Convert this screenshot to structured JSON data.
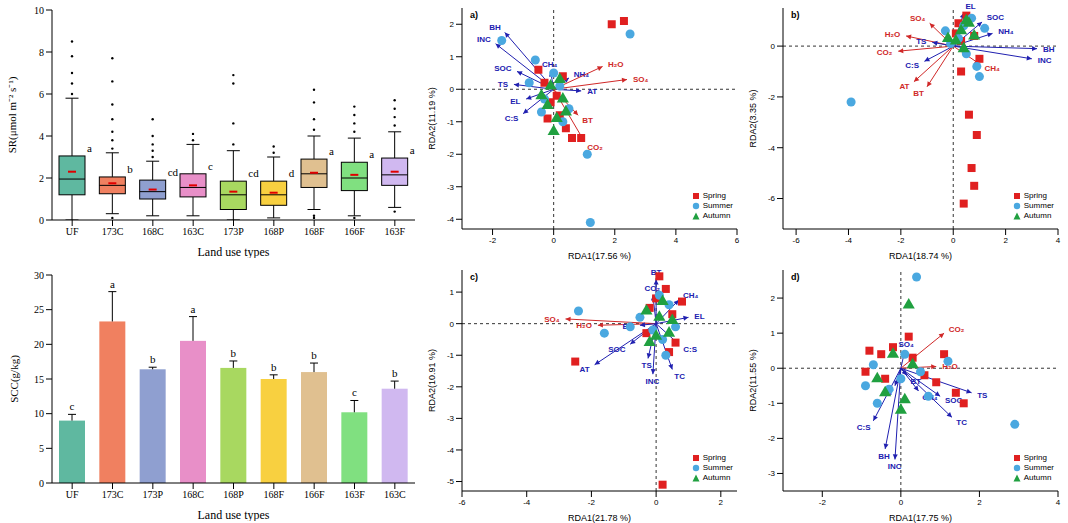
{
  "chart_data": [
    {
      "type": "box",
      "x_label": "Land use types",
      "y_label": "SR(μmol m⁻² s⁻¹)",
      "categories": [
        "UF",
        "173C",
        "168C",
        "163C",
        "173P",
        "168P",
        "168F",
        "166F",
        "163F"
      ],
      "colors": [
        "#5fb8a0",
        "#f08060",
        "#8f9fd0",
        "#e88fc8",
        "#a8d860",
        "#f8d040",
        "#e0c090",
        "#80e080",
        "#d0b8f0"
      ],
      "boxes": [
        {
          "min": 0,
          "q1": 1.2,
          "median": 1.95,
          "q3": 3.05,
          "max": 5.8,
          "mean": 2.3,
          "outliers": [
            6.0,
            6.5,
            7.0,
            7.8,
            8.5
          ]
        },
        {
          "min": 0.3,
          "q1": 1.25,
          "median": 1.65,
          "q3": 2.05,
          "max": 3.2,
          "mean": 1.75,
          "outliers": [
            0.1,
            3.4,
            3.8,
            4.2,
            4.8,
            5.5,
            6.6,
            7.7
          ]
        },
        {
          "min": 0.2,
          "q1": 1.0,
          "median": 1.35,
          "q3": 1.9,
          "max": 2.8,
          "mean": 1.45,
          "outliers": [
            3.0,
            3.3,
            3.6,
            4.0,
            4.8
          ]
        },
        {
          "min": 0.2,
          "q1": 1.1,
          "median": 1.55,
          "q3": 2.2,
          "max": 3.6,
          "mean": 1.65,
          "outliers": [
            3.8,
            4.1
          ]
        },
        {
          "min": 0,
          "q1": 0.5,
          "median": 1.2,
          "q3": 1.85,
          "max": 3.3,
          "mean": 1.35,
          "outliers": [
            3.6,
            4.6,
            6.5,
            6.9
          ]
        },
        {
          "min": 0.1,
          "q1": 0.7,
          "median": 1.2,
          "q3": 1.85,
          "max": 3.0,
          "mean": 1.3,
          "outliers": [
            3.2,
            3.5
          ]
        },
        {
          "min": 0.5,
          "q1": 1.55,
          "median": 2.2,
          "q3": 2.9,
          "max": 4.0,
          "mean": 2.25,
          "outliers": [
            0.1,
            0.2,
            4.3,
            4.8,
            5.6,
            6.2
          ]
        },
        {
          "min": 0.2,
          "q1": 1.4,
          "median": 2.0,
          "q3": 2.75,
          "max": 3.9,
          "mean": 2.15,
          "outliers": [
            0.1,
            4.2,
            4.6,
            5.0,
            5.4
          ]
        },
        {
          "min": 0.6,
          "q1": 1.65,
          "median": 2.15,
          "q3": 2.95,
          "max": 4.2,
          "mean": 2.3,
          "outliers": [
            0.4,
            4.5,
            4.9,
            5.3,
            5.7
          ]
        }
      ],
      "letters": [
        "a",
        "b",
        "cd",
        "c",
        "cd",
        "d",
        "a",
        "a",
        "a"
      ],
      "ylim": [
        0,
        10
      ],
      "yticks": [
        0,
        2,
        4,
        6,
        8,
        10
      ]
    },
    {
      "type": "bar",
      "x_label": "Land use types",
      "y_label": "SCC(g/kg)",
      "categories": [
        "UF",
        "173C",
        "173P",
        "168C",
        "168P",
        "168F",
        "166F",
        "163F",
        "163C"
      ],
      "values": [
        9.0,
        23.3,
        16.4,
        20.5,
        16.6,
        15.0,
        16.0,
        10.2,
        13.6
      ],
      "error": [
        0.9,
        4.3,
        0.3,
        3.5,
        1.0,
        0.6,
        1.3,
        1.7,
        1.1
      ],
      "letters": [
        "c",
        "a",
        "b",
        "a",
        "b",
        "b",
        "b",
        "c",
        "b"
      ],
      "colors": [
        "#5fb8a0",
        "#f08060",
        "#8f9fd0",
        "#e88fc8",
        "#a8d860",
        "#f8d040",
        "#e0c090",
        "#80e080",
        "#d0b8f0"
      ],
      "ylim": [
        0,
        30
      ],
      "yticks": [
        0,
        5,
        10,
        15,
        20,
        25,
        30
      ]
    },
    {
      "type": "scatter",
      "title": "a)",
      "x_label": "RDA1(17.56 %)",
      "y_label": "RDA2(11.19 %)",
      "xlim": [
        -3,
        6
      ],
      "ylim": [
        -4.3,
        2.5
      ],
      "xticks": [
        -2,
        0,
        2,
        4,
        6
      ],
      "yticks": [
        -4,
        -3,
        -2,
        -1,
        0,
        1,
        2
      ],
      "legend": "lower right",
      "series": [
        {
          "name": "Spring",
          "color": "#e02020",
          "marker": "square",
          "x": [
            -0.3,
            -0.1,
            0.2,
            0.4,
            -0.5,
            0.1,
            0.6,
            -0.2,
            2.3,
            1.9,
            0.9,
            0.3
          ],
          "y": [
            0.2,
            -0.4,
            -0.8,
            -1.2,
            0.6,
            -0.2,
            -1.5,
            -0.9,
            2.1,
            2.0,
            -1.5,
            0.4
          ]
        },
        {
          "name": "Summer",
          "color": "#4aa8e0",
          "marker": "circle",
          "x": [
            -1.7,
            -0.6,
            -0.3,
            0.2,
            0.5,
            2.5,
            1.1,
            1.2,
            -0.4,
            0.0,
            0.3,
            -0.8
          ],
          "y": [
            1.5,
            0.9,
            -0.3,
            0.1,
            -0.6,
            1.7,
            -2.0,
            -4.1,
            -0.7,
            0.5,
            -1.0,
            0.2
          ]
        },
        {
          "name": "Autumn",
          "color": "#20a040",
          "marker": "triangle",
          "x": [
            -0.2,
            0.1,
            0.3,
            -0.4,
            0.0,
            0.4,
            -0.1,
            0.2
          ],
          "y": [
            -0.5,
            -0.9,
            -0.3,
            -0.2,
            -1.3,
            -0.7,
            0.1,
            0.3
          ]
        }
      ],
      "arrows": [
        {
          "label": "BH",
          "x": -1.6,
          "y": 1.75,
          "color": "#2020b0"
        },
        {
          "label": "INC",
          "x": -1.9,
          "y": 1.4,
          "color": "#2020b0"
        },
        {
          "label": "TS",
          "x": -1.3,
          "y": 0.15,
          "color": "#2020b0"
        },
        {
          "label": "SOC",
          "x": -1.2,
          "y": 0.55,
          "color": "#2020b0"
        },
        {
          "label": "EL",
          "x": -0.9,
          "y": -0.3,
          "color": "#2020b0"
        },
        {
          "label": "C:S",
          "x": -1.0,
          "y": -0.75,
          "color": "#2020b0"
        },
        {
          "label": "CH₄",
          "x": -0.1,
          "y": 0.55,
          "color": "#2020b0"
        },
        {
          "label": "NH₄",
          "x": 0.5,
          "y": 0.35,
          "color": "#2020b0"
        },
        {
          "label": "AT",
          "x": 0.9,
          "y": -0.05,
          "color": "#2020b0"
        },
        {
          "label": "BT",
          "x": 0.8,
          "y": -0.8,
          "color": "#d02828"
        },
        {
          "label": "CO₂",
          "x": 1.0,
          "y": -1.6,
          "color": "#d02828"
        },
        {
          "label": "H₂O",
          "x": 1.6,
          "y": 0.7,
          "color": "#d02828"
        },
        {
          "label": "SO₄",
          "x": 2.4,
          "y": 0.3,
          "color": "#d02828"
        }
      ]
    },
    {
      "type": "scatter",
      "title": "b)",
      "x_label": "RDA1(18.74 %)",
      "y_label": "RDA2(3.35 %)",
      "xlim": [
        -6.5,
        4
      ],
      "ylim": [
        -7.2,
        1.5
      ],
      "xticks": [
        -6,
        -4,
        -2,
        0,
        2,
        4
      ],
      "yticks": [
        -6,
        -4,
        -2,
        0
      ],
      "legend": "lower right",
      "series": [
        {
          "name": "Spring",
          "color": "#e02020",
          "marker": "square",
          "x": [
            0.2,
            0.5,
            0.8,
            0.3,
            0.6,
            0.9,
            0.7,
            0.8,
            0.4,
            1.0,
            0.3,
            0.1
          ],
          "y": [
            0.9,
            1.2,
            0.4,
            0.2,
            -2.7,
            -3.5,
            -4.8,
            -5.5,
            -6.2,
            -0.5,
            -1.0,
            0.5
          ]
        },
        {
          "name": "Summer",
          "color": "#4aa8e0",
          "marker": "circle",
          "x": [
            -3.9,
            0.4,
            0.7,
            0.2,
            1.0,
            -0.3,
            0.5,
            1.2,
            0.9,
            -0.1
          ],
          "y": [
            -2.2,
            0.8,
            1.1,
            0.3,
            -1.2,
            0.6,
            -0.3,
            0.7,
            -0.8,
            0.1
          ]
        },
        {
          "name": "Autumn",
          "color": "#20a040",
          "marker": "triangle",
          "x": [
            0.3,
            0.6,
            0.1,
            0.8,
            0.5,
            -0.2,
            0.4
          ],
          "y": [
            0.6,
            0.9,
            0.2,
            0.4,
            1.0,
            0.3,
            -0.1
          ]
        }
      ],
      "arrows": [
        {
          "label": "BH",
          "x": 3.2,
          "y": -0.1,
          "color": "#2020b0"
        },
        {
          "label": "INC",
          "x": 3.0,
          "y": -0.5,
          "color": "#2020b0"
        },
        {
          "label": "EL",
          "x": 0.4,
          "y": 1.3,
          "color": "#2020b0"
        },
        {
          "label": "SOC",
          "x": 1.1,
          "y": 0.95,
          "color": "#2020b0"
        },
        {
          "label": "NH₄",
          "x": 1.5,
          "y": 0.5,
          "color": "#2020b0"
        },
        {
          "label": "CH₄",
          "x": 1.0,
          "y": -0.7,
          "color": "#d02828"
        },
        {
          "label": "AT",
          "x": -1.5,
          "y": -1.4,
          "color": "#d02828"
        },
        {
          "label": "BT",
          "x": -1.0,
          "y": -1.6,
          "color": "#d02828"
        },
        {
          "label": "CO₂",
          "x": -2.1,
          "y": -0.2,
          "color": "#d02828"
        },
        {
          "label": "H₂O",
          "x": -1.8,
          "y": 0.4,
          "color": "#d02828"
        },
        {
          "label": "SO₄",
          "x": -0.9,
          "y": 0.9,
          "color": "#d02828"
        },
        {
          "label": "TS",
          "x": -0.8,
          "y": 0.15,
          "color": "#2020b0"
        },
        {
          "label": "C:S",
          "x": -1.1,
          "y": -0.6,
          "color": "#2020b0"
        }
      ]
    },
    {
      "type": "scatter",
      "title": "c)",
      "x_label": "RDA1(21.78 %)",
      "y_label": "RDA2(10.91 %)",
      "xlim": [
        -6,
        2.5
      ],
      "ylim": [
        -5.3,
        1.7
      ],
      "xticks": [
        -6,
        -4,
        -2,
        0,
        2
      ],
      "yticks": [
        -5,
        -4,
        -3,
        -2,
        -1,
        0,
        1
      ],
      "legend": "lower right",
      "series": [
        {
          "name": "Spring",
          "color": "#e02020",
          "marker": "square",
          "x": [
            -2.5,
            0.2,
            0.1,
            0.8,
            0.3,
            -0.3,
            0.5,
            0.6,
            0.0,
            -0.2,
            0.4
          ],
          "y": [
            -1.2,
            -5.1,
            1.5,
            0.7,
            1.1,
            -0.3,
            0.3,
            -0.6,
            0.8,
            0.5,
            -0.9
          ]
        },
        {
          "name": "Summer",
          "color": "#4aa8e0",
          "marker": "circle",
          "x": [
            -2.4,
            -1.6,
            -0.5,
            0.2,
            0.4,
            -0.1,
            0.6,
            0.3,
            -0.8,
            0.1
          ],
          "y": [
            0.4,
            -0.3,
            0.2,
            -0.5,
            0.6,
            -0.2,
            -0.1,
            -1.0,
            -0.1,
            0.9
          ]
        },
        {
          "name": "Autumn",
          "color": "#20a040",
          "marker": "triangle",
          "x": [
            0.1,
            -0.3,
            0.4,
            0.2,
            -0.2,
            0.5,
            0.0
          ],
          "y": [
            0.2,
            0.4,
            -0.3,
            0.7,
            -0.6,
            0.1,
            -0.4
          ]
        }
      ],
      "arrows": [
        {
          "label": "BT",
          "x": 0.0,
          "y": 1.4,
          "color": "#2020b0"
        },
        {
          "label": "CO₂",
          "x": -0.1,
          "y": 0.9,
          "color": "#2020b0"
        },
        {
          "label": "CH₄",
          "x": 0.7,
          "y": 0.75,
          "color": "#2020b0"
        },
        {
          "label": "EL",
          "x": 1.0,
          "y": 0.2,
          "color": "#2020b0"
        },
        {
          "label": "SO₄",
          "x": -2.8,
          "y": 0.15,
          "color": "#d02828"
        },
        {
          "label": "H₂O",
          "x": -1.8,
          "y": -0.05,
          "color": "#d02828"
        },
        {
          "label": "BH",
          "x": -0.5,
          "y": -0.05,
          "color": "#2020b0"
        },
        {
          "label": "AT",
          "x": -1.9,
          "y": -1.3,
          "color": "#2020b0"
        },
        {
          "label": "SOC",
          "x": -0.8,
          "y": -0.65,
          "color": "#2020b0"
        },
        {
          "label": "TS",
          "x": -0.25,
          "y": -1.1,
          "color": "#2020b0"
        },
        {
          "label": "INC",
          "x": -0.1,
          "y": -1.6,
          "color": "#2020b0"
        },
        {
          "label": "TC",
          "x": 0.5,
          "y": -1.45,
          "color": "#2020b0"
        },
        {
          "label": "C:S",
          "x": 0.7,
          "y": -0.65,
          "color": "#2020b0"
        }
      ]
    },
    {
      "type": "scatter",
      "title": "d)",
      "x_label": "RDA1(17.75 %)",
      "y_label": "RDA2(11.55 %)",
      "xlim": [
        -3,
        4
      ],
      "ylim": [
        -3.5,
        2.8
      ],
      "xticks": [
        -2,
        0,
        2,
        4
      ],
      "yticks": [
        -3,
        -2,
        -1,
        0,
        1,
        2
      ],
      "legend": "lower right",
      "series": [
        {
          "name": "Spring",
          "color": "#e02020",
          "marker": "square",
          "x": [
            -0.8,
            -0.5,
            -0.2,
            0.3,
            0.6,
            1.1,
            1.4,
            0.9,
            -0.4,
            0.2,
            1.6,
            -0.9
          ],
          "y": [
            0.5,
            0.4,
            0.6,
            0.3,
            -0.2,
            0.4,
            -0.7,
            -0.4,
            -0.3,
            0.9,
            -1.0,
            -0.1
          ]
        },
        {
          "name": "Summer",
          "color": "#4aa8e0",
          "marker": "circle",
          "x": [
            -0.9,
            -0.6,
            -0.3,
            0.1,
            0.4,
            0.7,
            1.2,
            2.9,
            -0.7,
            0.0,
            0.5
          ],
          "y": [
            -0.5,
            -1.0,
            -0.6,
            0.4,
            2.6,
            -0.8,
            0.2,
            -1.6,
            0.1,
            -0.3,
            -0.1
          ]
        },
        {
          "name": "Autumn",
          "color": "#20a040",
          "marker": "triangle",
          "x": [
            -0.4,
            0.0,
            0.2,
            -0.6,
            0.3,
            0.1,
            -0.2
          ],
          "y": [
            -0.7,
            -1.2,
            1.8,
            -0.3,
            0.1,
            -0.9,
            0.4
          ]
        }
      ],
      "arrows": [
        {
          "label": "CO₂",
          "x": 1.1,
          "y": 1.0,
          "color": "#d02828"
        },
        {
          "label": "SO₄",
          "x": 0.1,
          "y": 0.5,
          "color": "#2020b0"
        },
        {
          "label": "H₂O",
          "x": 0.9,
          "y": 0.05,
          "color": "#d02828"
        },
        {
          "label": "BT",
          "x": 0.15,
          "y": -0.2,
          "color": "#2020b0"
        },
        {
          "label": "AT",
          "x": -0.15,
          "y": -0.5,
          "color": "#2020b0"
        },
        {
          "label": "CH₄",
          "x": 0.45,
          "y": -0.65,
          "color": "#2020b0"
        },
        {
          "label": "SOC",
          "x": 1.0,
          "y": -0.8,
          "color": "#2020b0"
        },
        {
          "label": "TS",
          "x": 1.8,
          "y": -0.7,
          "color": "#2020b0"
        },
        {
          "label": "TC",
          "x": 1.3,
          "y": -1.4,
          "color": "#2020b0"
        },
        {
          "label": "C:S",
          "x": -0.7,
          "y": -1.5,
          "color": "#2020b0"
        },
        {
          "label": "BH",
          "x": -0.4,
          "y": -2.3,
          "color": "#2020b0"
        },
        {
          "label": "INC",
          "x": -0.15,
          "y": -2.6,
          "color": "#2020b0"
        }
      ]
    }
  ]
}
